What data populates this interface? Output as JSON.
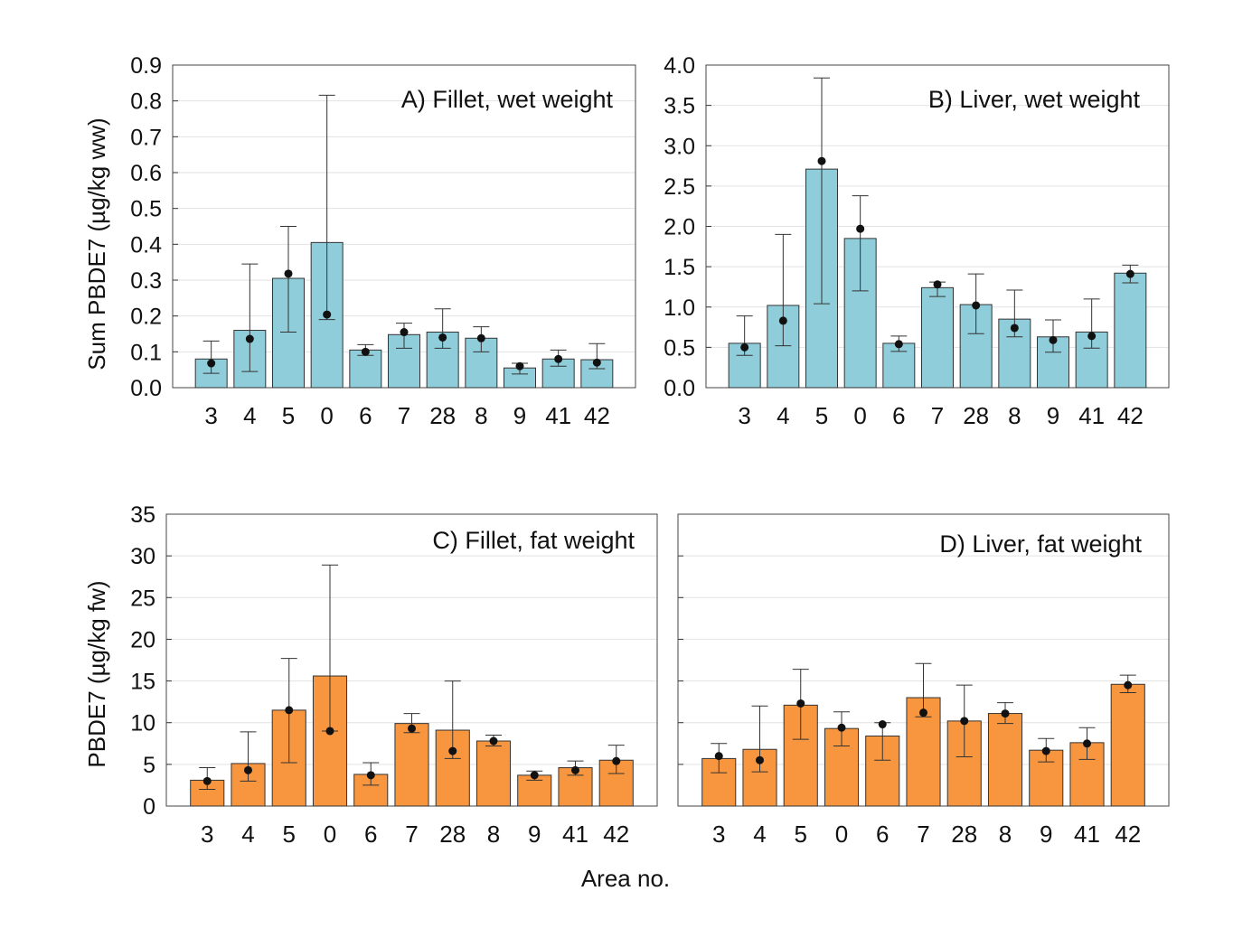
{
  "chart_data": [
    {
      "type": "bar",
      "title": "A) Fillet, wet weight",
      "ylabel": "Sum PBDE7 (µg/kg ww)",
      "xlabel": "",
      "categories": [
        "3",
        "4",
        "5",
        "0",
        "6",
        "7",
        "28",
        "8",
        "9",
        "41",
        "42"
      ],
      "ylim": [
        0,
        0.9
      ],
      "yticks": [
        "0.0",
        "0.1",
        "0.2",
        "0.3",
        "0.4",
        "0.5",
        "0.6",
        "0.7",
        "0.8",
        "0.9"
      ],
      "grid": true,
      "bar_color": "#8fcdda",
      "values": [
        0.08,
        0.16,
        0.305,
        0.405,
        0.105,
        0.148,
        0.155,
        0.138,
        0.055,
        0.08,
        0.078
      ],
      "points": [
        0.068,
        0.136,
        0.318,
        0.204,
        0.1,
        0.155,
        0.14,
        0.138,
        0.06,
        0.08,
        0.07
      ],
      "err_high": [
        0.13,
        0.345,
        0.45,
        0.816,
        0.12,
        0.18,
        0.22,
        0.17,
        0.068,
        0.105,
        0.123
      ],
      "err_low": [
        0.04,
        0.045,
        0.155,
        0.19,
        0.09,
        0.11,
        0.11,
        0.1,
        0.038,
        0.06,
        0.053
      ]
    },
    {
      "type": "bar",
      "title": "B) Liver, wet weight",
      "ylabel": "",
      "xlabel": "",
      "categories": [
        "3",
        "4",
        "5",
        "0",
        "6",
        "7",
        "28",
        "8",
        "9",
        "41",
        "42"
      ],
      "ylim": [
        0,
        4.0
      ],
      "yticks": [
        "0.0",
        "0.5",
        "1.0",
        "1.5",
        "2.0",
        "2.5",
        "3.0",
        "3.5",
        "4.0"
      ],
      "grid": true,
      "bar_color": "#8fcdda",
      "values": [
        0.55,
        1.02,
        2.71,
        1.85,
        0.55,
        1.24,
        1.03,
        0.85,
        0.63,
        0.69,
        1.42
      ],
      "points": [
        0.5,
        0.83,
        2.81,
        1.97,
        0.54,
        1.28,
        1.02,
        0.74,
        0.59,
        0.64,
        1.41
      ],
      "err_high": [
        0.89,
        1.9,
        3.84,
        2.38,
        0.64,
        1.31,
        1.41,
        1.21,
        0.84,
        1.1,
        1.52
      ],
      "err_low": [
        0.4,
        0.52,
        1.04,
        1.2,
        0.45,
        1.13,
        0.67,
        0.63,
        0.44,
        0.49,
        1.3
      ]
    },
    {
      "type": "bar",
      "title": "C) Fillet, fat weight",
      "ylabel": "PBDE7 (µg/kg fw)",
      "xlabel": "",
      "categories": [
        "3",
        "4",
        "5",
        "0",
        "6",
        "7",
        "28",
        "8",
        "9",
        "41",
        "42"
      ],
      "ylim": [
        0,
        35
      ],
      "yticks": [
        "0",
        "5",
        "10",
        "15",
        "20",
        "25",
        "30",
        "35"
      ],
      "grid": true,
      "bar_color": "#f7963f",
      "values": [
        3.1,
        5.1,
        11.5,
        15.6,
        3.8,
        9.9,
        9.1,
        7.8,
        3.7,
        4.6,
        5.5
      ],
      "points": [
        3.0,
        4.3,
        11.5,
        9.0,
        3.7,
        9.3,
        6.6,
        7.8,
        3.7,
        4.3,
        5.4
      ],
      "err_high": [
        4.6,
        8.9,
        17.7,
        28.9,
        5.2,
        11.1,
        15.0,
        8.5,
        4.2,
        5.4,
        7.3
      ],
      "err_low": [
        2.0,
        3.0,
        5.2,
        9.0,
        2.5,
        8.8,
        5.7,
        7.2,
        3.1,
        3.7,
        3.9
      ]
    },
    {
      "type": "bar",
      "title": "D) Liver, fat weight",
      "ylabel": "",
      "xlabel": "Area no.",
      "categories": [
        "3",
        "4",
        "5",
        "0",
        "6",
        "7",
        "28",
        "8",
        "9",
        "41",
        "42"
      ],
      "ylim": [
        0,
        35
      ],
      "yticks": [],
      "grid": true,
      "bar_color": "#f7963f",
      "values": [
        5.7,
        6.8,
        12.1,
        9.3,
        8.4,
        13.0,
        10.2,
        11.1,
        6.7,
        7.6,
        14.6
      ],
      "points": [
        6.0,
        5.5,
        12.3,
        9.4,
        9.8,
        11.2,
        10.2,
        11.1,
        6.6,
        7.5,
        14.5
      ],
      "err_high": [
        7.5,
        12.0,
        16.4,
        11.3,
        10.0,
        17.1,
        14.5,
        12.4,
        8.1,
        9.4,
        15.7
      ],
      "err_low": [
        4.0,
        4.1,
        8.0,
        7.2,
        5.5,
        10.7,
        5.9,
        9.9,
        5.3,
        5.6,
        13.6
      ]
    }
  ]
}
